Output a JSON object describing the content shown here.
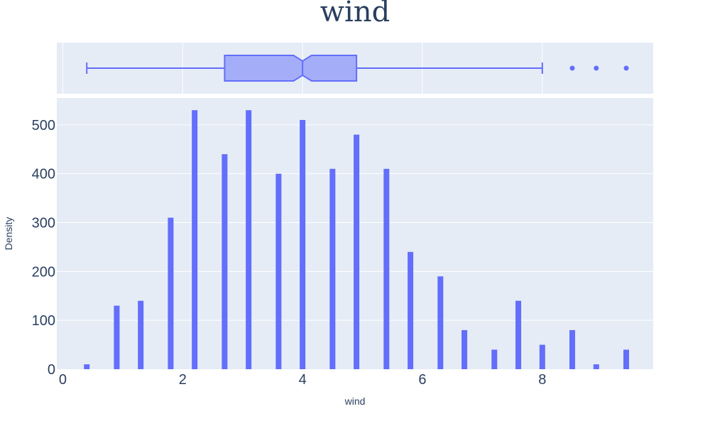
{
  "chart_data": {
    "type": "histogram",
    "title": "wind",
    "xlabel": "wind",
    "ylabel": "Density",
    "xlim": [
      -0.1,
      9.85
    ],
    "ylim": [
      0,
      555
    ],
    "x_ticks": [
      0,
      2,
      4,
      6,
      8
    ],
    "y_ticks": [
      0,
      100,
      200,
      300,
      400,
      500
    ],
    "grid": true,
    "bins": [
      {
        "x": 0.4,
        "count": 10
      },
      {
        "x": 0.9,
        "count": 130
      },
      {
        "x": 1.3,
        "count": 140
      },
      {
        "x": 1.8,
        "count": 310
      },
      {
        "x": 2.2,
        "count": 530
      },
      {
        "x": 2.7,
        "count": 440
      },
      {
        "x": 3.1,
        "count": 530
      },
      {
        "x": 3.6,
        "count": 400
      },
      {
        "x": 4.0,
        "count": 510
      },
      {
        "x": 4.5,
        "count": 410
      },
      {
        "x": 4.9,
        "count": 480
      },
      {
        "x": 5.4,
        "count": 410
      },
      {
        "x": 5.8,
        "count": 240
      },
      {
        "x": 6.3,
        "count": 190
      },
      {
        "x": 6.7,
        "count": 80
      },
      {
        "x": 7.2,
        "count": 40
      },
      {
        "x": 7.6,
        "count": 140
      },
      {
        "x": 8.0,
        "count": 50
      },
      {
        "x": 8.5,
        "count": 80
      },
      {
        "x": 8.9,
        "count": 10
      },
      {
        "x": 9.4,
        "count": 40
      }
    ],
    "marginal_box": {
      "notched": true,
      "min": 0.4,
      "q1": 2.7,
      "median": 4.0,
      "notch_low": 3.85,
      "notch_high": 4.15,
      "q3": 4.9,
      "max": 8.0,
      "outliers": [
        8.5,
        8.9,
        9.4
      ]
    },
    "colors": {
      "bar": "#636efa",
      "plot_background": "#e5ecf6",
      "text": "#2a3f5f"
    }
  }
}
